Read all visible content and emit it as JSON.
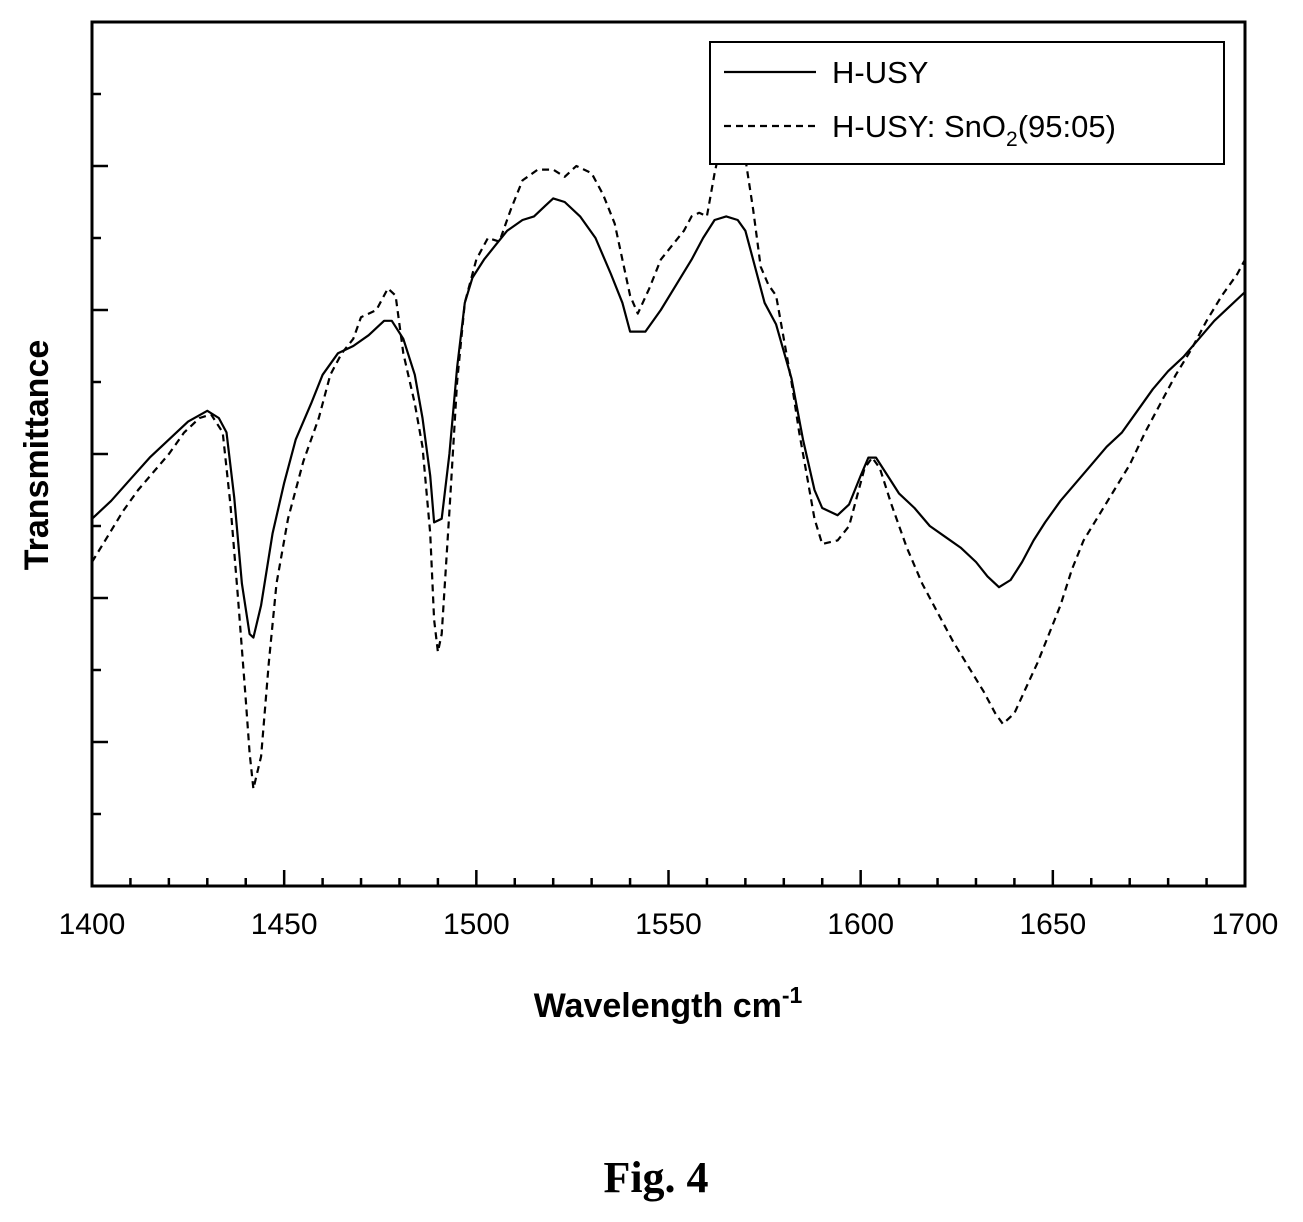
{
  "caption": "Fig. 4",
  "chart_data": {
    "type": "line",
    "xlabel": "Wavelength cm",
    "xlabel_superscript": "-1",
    "ylabel": "Transmittance",
    "xlim": [
      1400,
      1700
    ],
    "xticks": [
      "1400",
      "1450",
      "1500",
      "1550",
      "1600",
      "1650",
      "1700"
    ],
    "ylim": [
      0,
      12
    ],
    "y_tick_labels": "none",
    "grid": false,
    "legend_position": "top-right",
    "series": [
      {
        "name": "H-USY",
        "legend_label": "H-USY",
        "style": "solid",
        "color": "#000000",
        "points": [
          [
            1400,
            5.1
          ],
          [
            1405,
            5.35
          ],
          [
            1410,
            5.65
          ],
          [
            1415,
            5.95
          ],
          [
            1420,
            6.2
          ],
          [
            1425,
            6.45
          ],
          [
            1430,
            6.6
          ],
          [
            1433,
            6.5
          ],
          [
            1435,
            6.3
          ],
          [
            1437,
            5.4
          ],
          [
            1439,
            4.2
          ],
          [
            1441,
            3.5
          ],
          [
            1442,
            3.45
          ],
          [
            1444,
            3.9
          ],
          [
            1447,
            4.9
          ],
          [
            1450,
            5.6
          ],
          [
            1453,
            6.2
          ],
          [
            1457,
            6.7
          ],
          [
            1460,
            7.1
          ],
          [
            1464,
            7.4
          ],
          [
            1468,
            7.5
          ],
          [
            1472,
            7.65
          ],
          [
            1476,
            7.85
          ],
          [
            1478,
            7.85
          ],
          [
            1481,
            7.6
          ],
          [
            1484,
            7.1
          ],
          [
            1486,
            6.5
          ],
          [
            1488,
            5.7
          ],
          [
            1489,
            5.05
          ],
          [
            1491,
            5.1
          ],
          [
            1493,
            6.0
          ],
          [
            1495,
            7.2
          ],
          [
            1497,
            8.1
          ],
          [
            1499,
            8.45
          ],
          [
            1502,
            8.7
          ],
          [
            1505,
            8.9
          ],
          [
            1508,
            9.1
          ],
          [
            1512,
            9.25
          ],
          [
            1515,
            9.3
          ],
          [
            1518,
            9.45
          ],
          [
            1520,
            9.55
          ],
          [
            1523,
            9.5
          ],
          [
            1527,
            9.3
          ],
          [
            1531,
            9.0
          ],
          [
            1535,
            8.5
          ],
          [
            1538,
            8.1
          ],
          [
            1540,
            7.7
          ],
          [
            1544,
            7.7
          ],
          [
            1548,
            8.0
          ],
          [
            1552,
            8.35
          ],
          [
            1556,
            8.7
          ],
          [
            1559,
            9.0
          ],
          [
            1562,
            9.25
          ],
          [
            1565,
            9.3
          ],
          [
            1568,
            9.25
          ],
          [
            1570,
            9.1
          ],
          [
            1572,
            8.7
          ],
          [
            1575,
            8.1
          ],
          [
            1578,
            7.8
          ],
          [
            1582,
            7.05
          ],
          [
            1585,
            6.2
          ],
          [
            1588,
            5.5
          ],
          [
            1590,
            5.25
          ],
          [
            1594,
            5.15
          ],
          [
            1597,
            5.3
          ],
          [
            1600,
            5.7
          ],
          [
            1602,
            5.95
          ],
          [
            1604,
            5.95
          ],
          [
            1607,
            5.7
          ],
          [
            1610,
            5.45
          ],
          [
            1614,
            5.25
          ],
          [
            1618,
            5.0
          ],
          [
            1622,
            4.85
          ],
          [
            1626,
            4.7
          ],
          [
            1630,
            4.5
          ],
          [
            1633,
            4.3
          ],
          [
            1636,
            4.15
          ],
          [
            1639,
            4.25
          ],
          [
            1642,
            4.5
          ],
          [
            1645,
            4.8
          ],
          [
            1648,
            5.05
          ],
          [
            1652,
            5.35
          ],
          [
            1656,
            5.6
          ],
          [
            1660,
            5.85
          ],
          [
            1664,
            6.1
          ],
          [
            1668,
            6.3
          ],
          [
            1672,
            6.6
          ],
          [
            1676,
            6.9
          ],
          [
            1680,
            7.15
          ],
          [
            1684,
            7.35
          ],
          [
            1688,
            7.6
          ],
          [
            1692,
            7.85
          ],
          [
            1696,
            8.05
          ],
          [
            1700,
            8.25
          ]
        ]
      },
      {
        "name": "H-USY: SnO2(95:05)",
        "legend_label_main": "H-USY: SnO",
        "legend_label_sub": "2",
        "legend_label_tail": "(95:05)",
        "style": "dashed",
        "color": "#000000",
        "points": [
          [
            1400,
            4.5
          ],
          [
            1404,
            4.85
          ],
          [
            1408,
            5.2
          ],
          [
            1412,
            5.5
          ],
          [
            1416,
            5.75
          ],
          [
            1420,
            6.0
          ],
          [
            1424,
            6.3
          ],
          [
            1428,
            6.5
          ],
          [
            1431,
            6.55
          ],
          [
            1434,
            6.3
          ],
          [
            1436,
            5.3
          ],
          [
            1438,
            4.0
          ],
          [
            1440,
            2.6
          ],
          [
            1441,
            1.85
          ],
          [
            1442,
            1.35
          ],
          [
            1444,
            1.8
          ],
          [
            1446,
            3.1
          ],
          [
            1448,
            4.2
          ],
          [
            1451,
            5.1
          ],
          [
            1455,
            5.9
          ],
          [
            1459,
            6.5
          ],
          [
            1462,
            7.1
          ],
          [
            1465,
            7.4
          ],
          [
            1468,
            7.6
          ],
          [
            1470,
            7.9
          ],
          [
            1474,
            8.0
          ],
          [
            1477,
            8.3
          ],
          [
            1479,
            8.2
          ],
          [
            1481,
            7.4
          ],
          [
            1484,
            6.7
          ],
          [
            1486,
            6.1
          ],
          [
            1488,
            4.9
          ],
          [
            1489,
            3.7
          ],
          [
            1490,
            3.25
          ],
          [
            1491,
            3.5
          ],
          [
            1493,
            5.2
          ],
          [
            1495,
            7.0
          ],
          [
            1497,
            8.1
          ],
          [
            1500,
            8.7
          ],
          [
            1503,
            9.0
          ],
          [
            1506,
            8.95
          ],
          [
            1509,
            9.4
          ],
          [
            1512,
            9.8
          ],
          [
            1516,
            9.95
          ],
          [
            1520,
            9.95
          ],
          [
            1523,
            9.85
          ],
          [
            1526,
            10.0
          ],
          [
            1530,
            9.9
          ],
          [
            1533,
            9.6
          ],
          [
            1536,
            9.2
          ],
          [
            1538,
            8.7
          ],
          [
            1540,
            8.2
          ],
          [
            1542,
            7.95
          ],
          [
            1545,
            8.3
          ],
          [
            1548,
            8.7
          ],
          [
            1551,
            8.9
          ],
          [
            1554,
            9.1
          ],
          [
            1556,
            9.3
          ],
          [
            1558,
            9.35
          ],
          [
            1560,
            9.3
          ],
          [
            1562,
            9.9
          ],
          [
            1564,
            10.4
          ],
          [
            1566,
            10.55
          ],
          [
            1568,
            10.5
          ],
          [
            1570,
            10.1
          ],
          [
            1572,
            9.4
          ],
          [
            1574,
            8.6
          ],
          [
            1576,
            8.35
          ],
          [
            1578,
            8.2
          ],
          [
            1580,
            7.6
          ],
          [
            1582,
            7.0
          ],
          [
            1584,
            6.3
          ],
          [
            1586,
            5.7
          ],
          [
            1588,
            5.1
          ],
          [
            1590,
            4.75
          ],
          [
            1594,
            4.8
          ],
          [
            1597,
            5.0
          ],
          [
            1599,
            5.4
          ],
          [
            1601,
            5.8
          ],
          [
            1603,
            5.95
          ],
          [
            1605,
            5.8
          ],
          [
            1608,
            5.3
          ],
          [
            1612,
            4.7
          ],
          [
            1616,
            4.2
          ],
          [
            1620,
            3.8
          ],
          [
            1624,
            3.4
          ],
          [
            1628,
            3.05
          ],
          [
            1632,
            2.7
          ],
          [
            1635,
            2.4
          ],
          [
            1637,
            2.25
          ],
          [
            1640,
            2.4
          ],
          [
            1643,
            2.75
          ],
          [
            1646,
            3.1
          ],
          [
            1649,
            3.5
          ],
          [
            1652,
            3.9
          ],
          [
            1655,
            4.4
          ],
          [
            1658,
            4.8
          ],
          [
            1662,
            5.15
          ],
          [
            1666,
            5.5
          ],
          [
            1670,
            5.85
          ],
          [
            1674,
            6.3
          ],
          [
            1678,
            6.7
          ],
          [
            1682,
            7.1
          ],
          [
            1686,
            7.45
          ],
          [
            1690,
            7.85
          ],
          [
            1694,
            8.2
          ],
          [
            1698,
            8.5
          ],
          [
            1700,
            8.7
          ]
        ]
      }
    ]
  }
}
